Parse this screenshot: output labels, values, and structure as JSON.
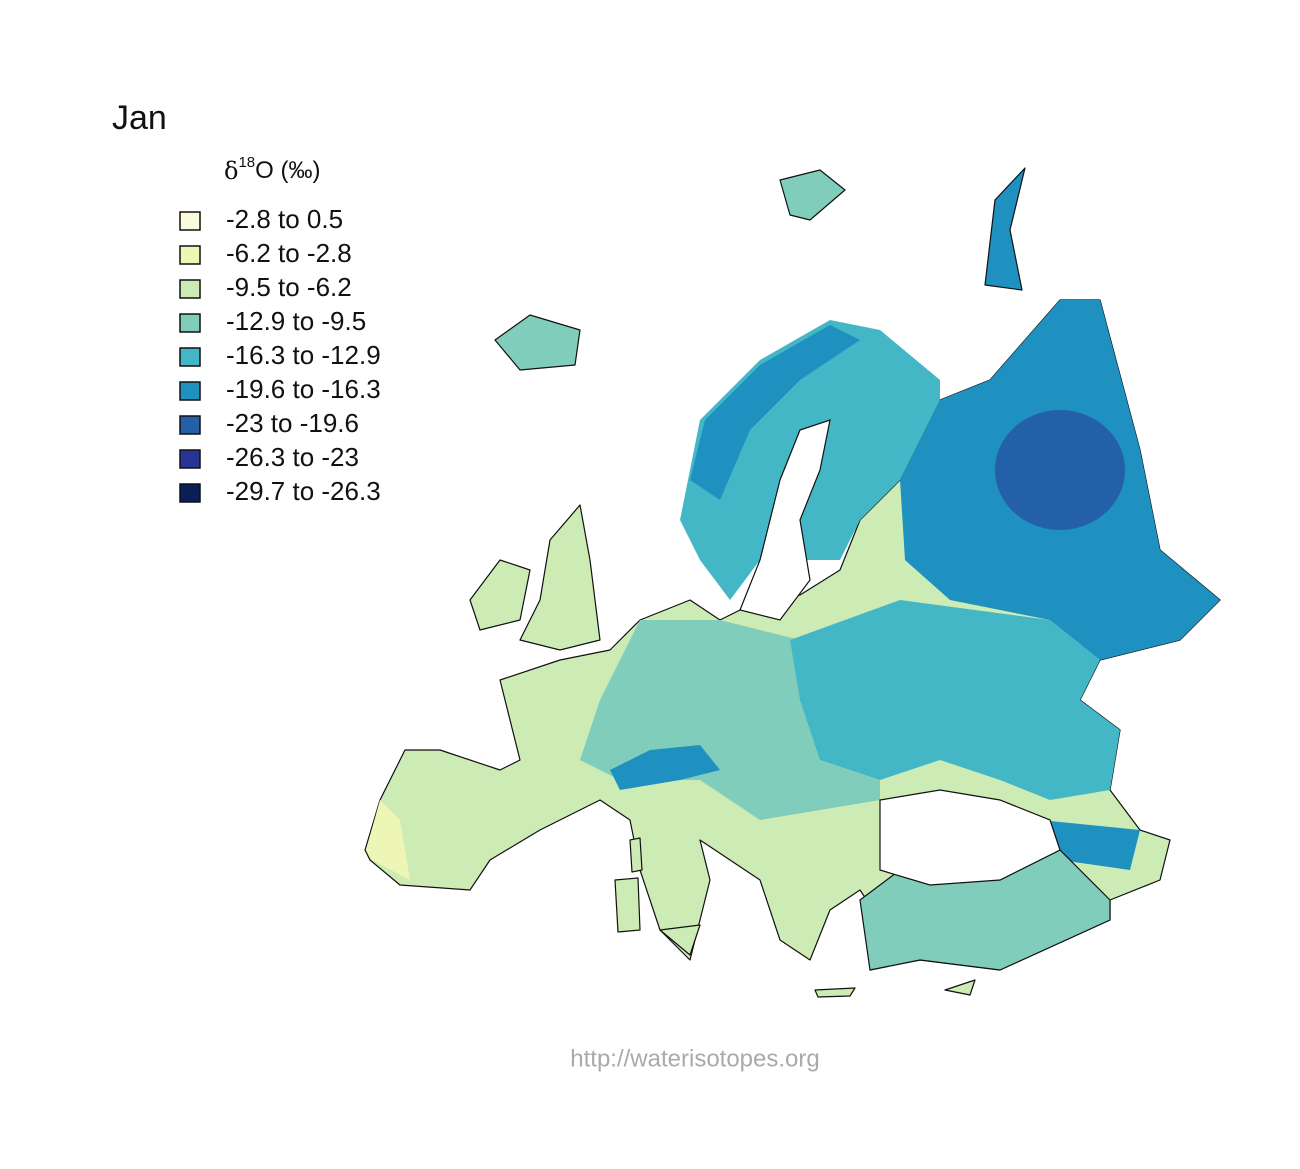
{
  "title": "Jan",
  "legend": {
    "title_symbol": "δ",
    "title_superscript": "18",
    "title_rest": "O (‰)",
    "items": [
      {
        "label": "-2.8 to 0.5",
        "color": "#fafadc"
      },
      {
        "label": "-6.2 to -2.8",
        "color": "#eef6b6"
      },
      {
        "label": "-9.5 to -6.2",
        "color": "#cdebb4"
      },
      {
        "label": "-12.9 to -9.5",
        "color": "#80cdbb"
      },
      {
        "label": "-16.3 to -12.9",
        "color": "#43b7c5"
      },
      {
        "label": "-19.6 to -16.3",
        "color": "#1e91c0"
      },
      {
        "label": "-23 to -19.6",
        "color": "#2460a8"
      },
      {
        "label": "-26.3 to -23",
        "color": "#263595"
      },
      {
        "label": "-29.7 to -26.3",
        "color": "#0a1e58"
      }
    ]
  },
  "footer": "http://waterisotopes.org"
}
